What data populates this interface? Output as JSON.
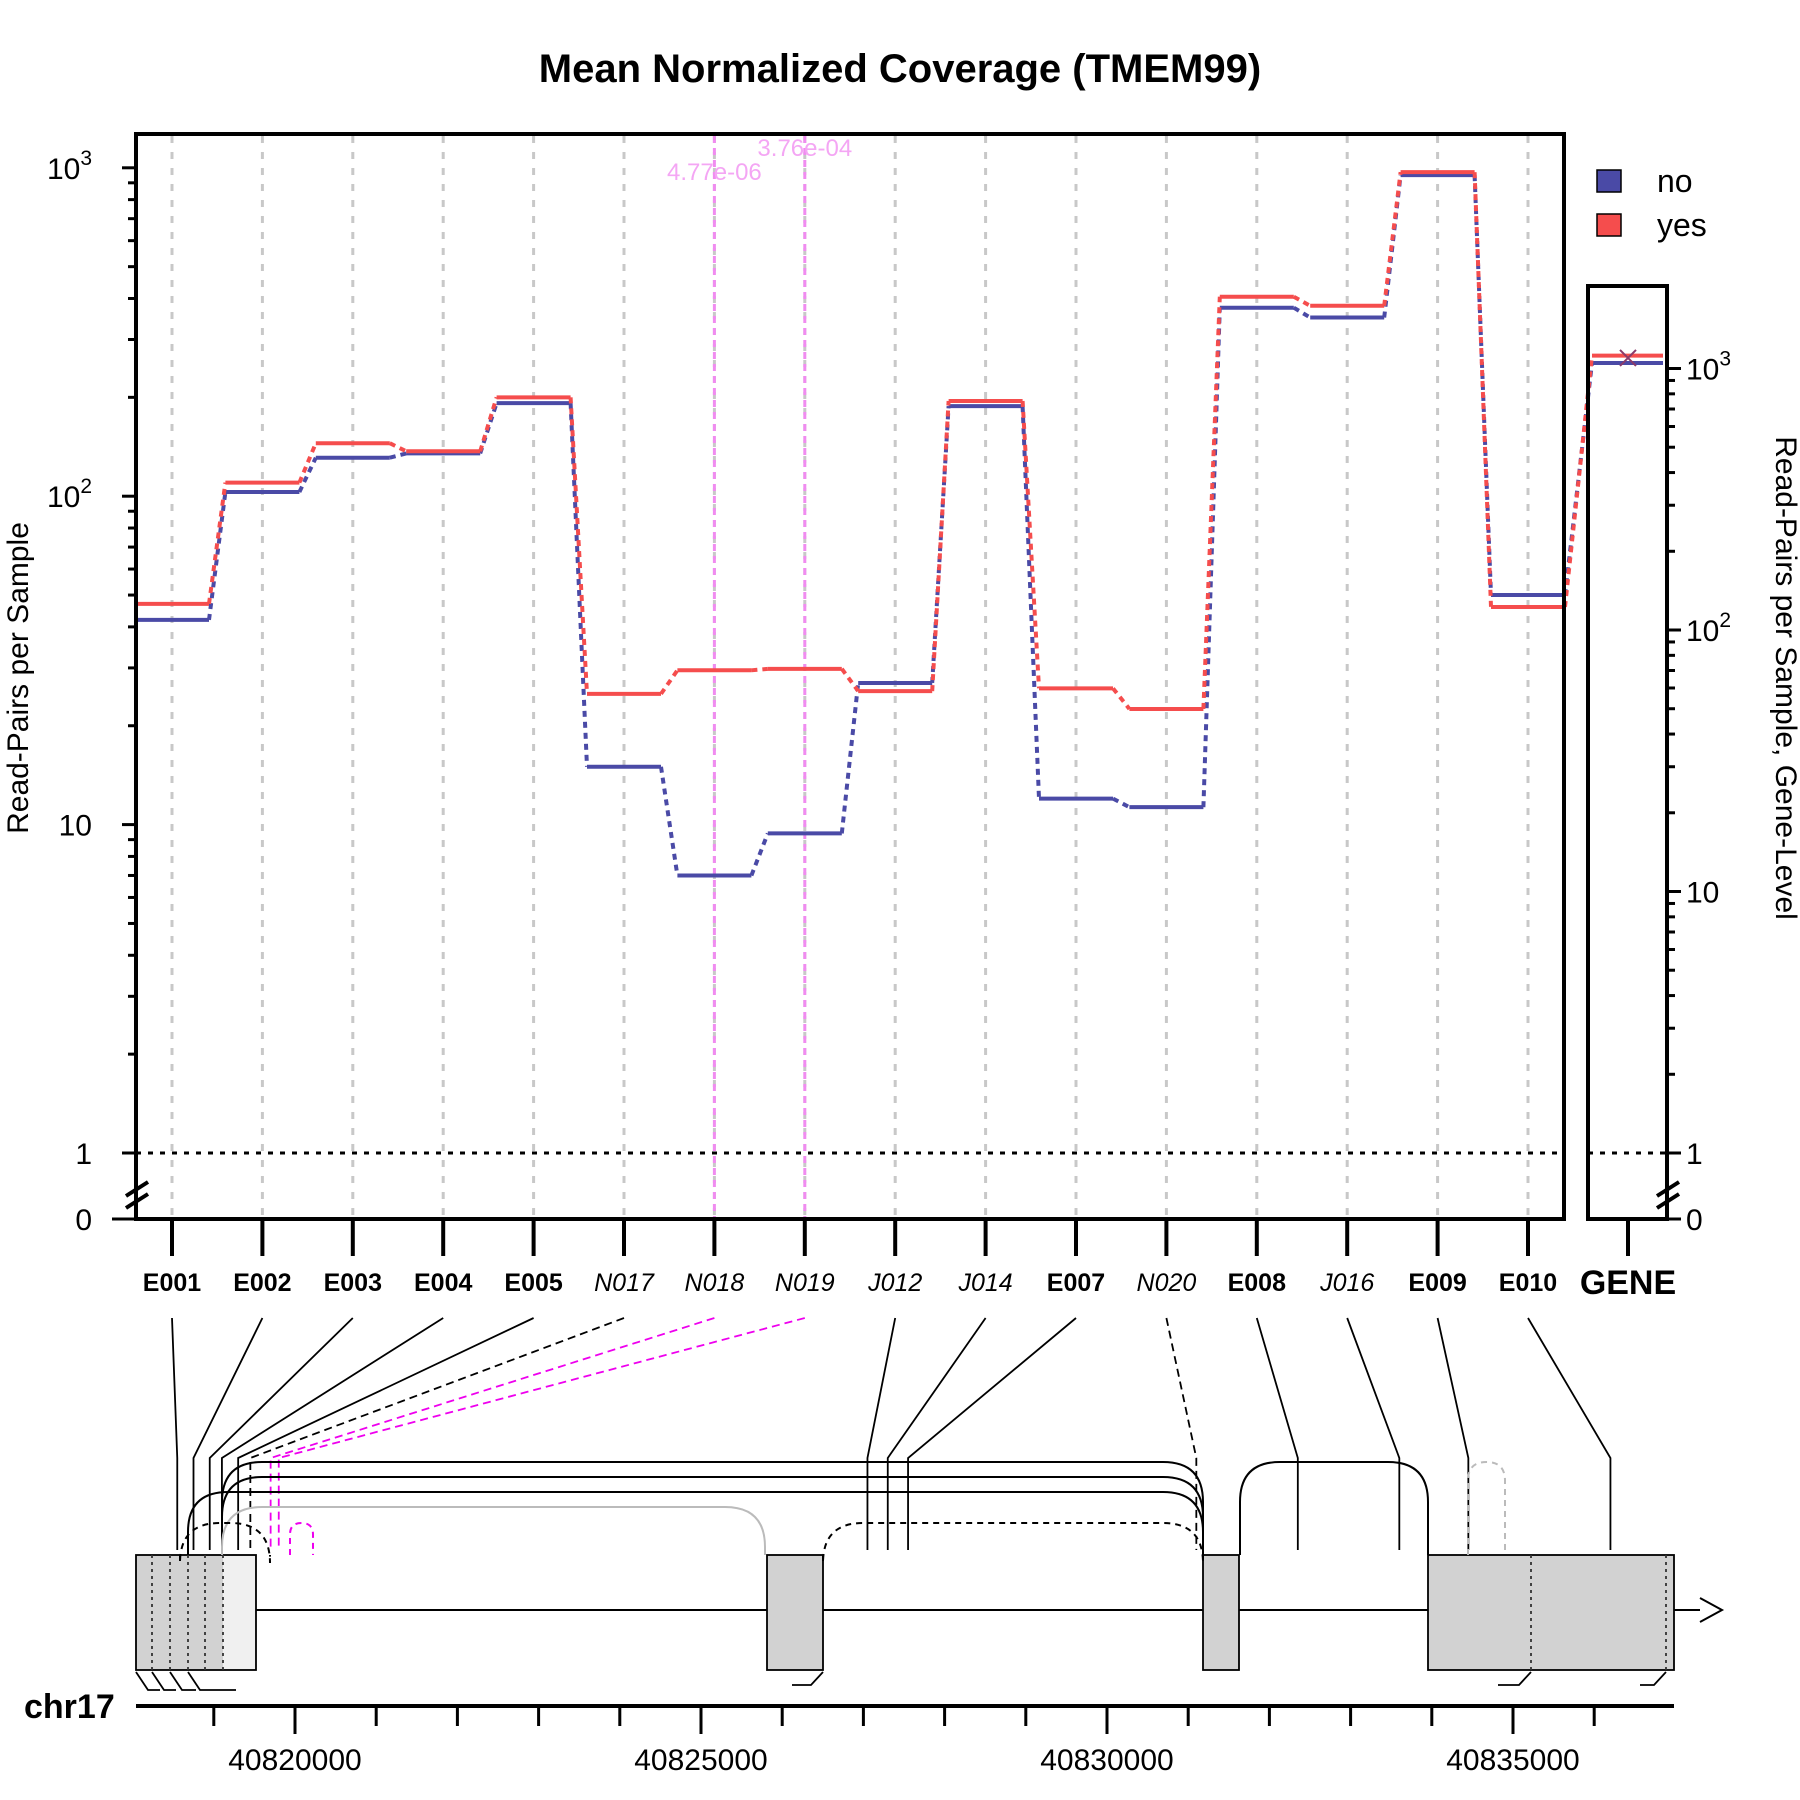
{
  "chart_data": {
    "type": "line",
    "title": "Mean Normalized Coverage (TMEM99)",
    "ylabel": "Read-Pairs per Sample",
    "ylabel_right": "Read-Pairs per Sample, Gene-Level",
    "y_scale": "log",
    "ylim": [
      0,
      1300
    ],
    "y_tick_labels": [
      "0",
      "1",
      "10",
      "10^2",
      "10^3"
    ],
    "y_tick_labels_right": [
      "0",
      "1",
      "10",
      "10^2",
      "10^3"
    ],
    "grid": "vertical dashed at each feature",
    "reference_line": {
      "y": 1,
      "style": "dotted"
    },
    "legend": {
      "position": "top-right",
      "entries": [
        {
          "label": "no",
          "color": "#4a4aa6"
        },
        {
          "label": "yes",
          "color": "#f54d4d"
        }
      ]
    },
    "features": [
      "E001",
      "E002",
      "E003",
      "E004",
      "E005",
      "N017",
      "N018",
      "N019",
      "J012",
      "J014",
      "E007",
      "N020",
      "E008",
      "J016",
      "E009",
      "E010"
    ],
    "feature_kinds": [
      "exon",
      "exon",
      "exon",
      "exon",
      "exon",
      "junction",
      "junction",
      "junction",
      "junction",
      "junction",
      "exon",
      "junction",
      "exon",
      "junction",
      "exon",
      "exon"
    ],
    "series": [
      {
        "name": "no",
        "color": "#4a4aa6",
        "values": [
          42,
          103,
          131,
          135,
          192,
          15,
          7,
          9.4,
          27,
          188,
          12,
          11.3,
          375,
          350,
          950,
          50
        ]
      },
      {
        "name": "yes",
        "color": "#f54d4d",
        "values": [
          47,
          110,
          145,
          137,
          200,
          25,
          29.5,
          29.8,
          25.5,
          195,
          26,
          22.5,
          405,
          380,
          970,
          46
        ]
      }
    ],
    "gene_level": {
      "label": "GENE",
      "series": [
        {
          "name": "no",
          "value": 1050
        },
        {
          "name": "yes",
          "value": 1120
        }
      ]
    },
    "significant": [
      {
        "feature": "N018",
        "pvalue": "4.77e-06"
      },
      {
        "feature": "N019",
        "pvalue": "3.76e-04"
      }
    ],
    "genome": {
      "chromosome": "chr17",
      "tick_labels": [
        "40820000",
        "40825000",
        "40830000",
        "40835000"
      ],
      "tick_values": [
        40820000,
        40825000,
        40830000,
        40835000
      ]
    },
    "colors": {
      "no": "#4a4aa6",
      "yes": "#f54d4d",
      "significant": "#ee00ee",
      "grid": "#c8c8c8"
    }
  }
}
